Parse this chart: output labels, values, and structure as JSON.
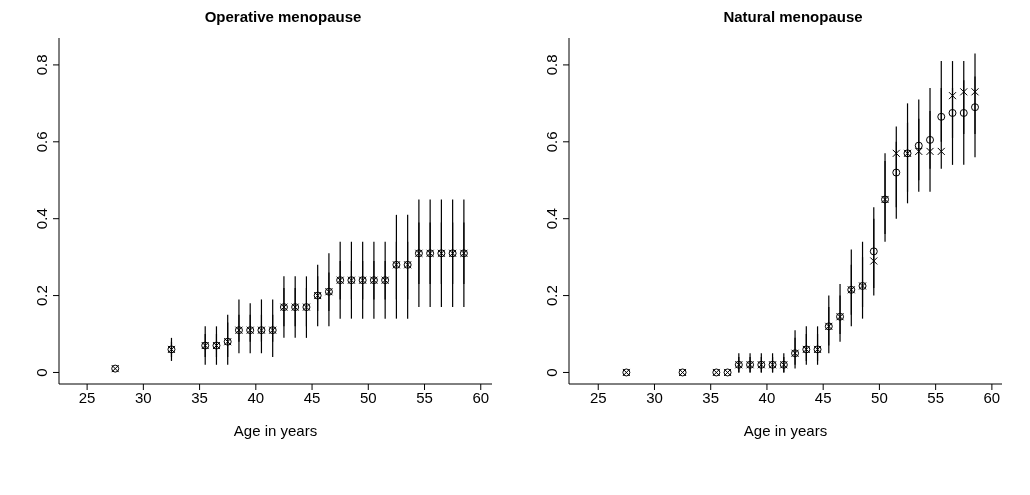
{
  "chart_data": [
    {
      "type": "scatter",
      "title": "Operative menopause",
      "xlabel": "Age in years",
      "xlim": [
        22.5,
        61
      ],
      "ylim": [
        -0.03,
        0.87
      ],
      "xticks": [
        25,
        30,
        35,
        40,
        45,
        50,
        55,
        60
      ],
      "yticks": [
        0,
        0.2,
        0.4,
        0.6,
        0.8
      ],
      "x": [
        27.5,
        32.5,
        35.5,
        36.5,
        37.5,
        38.5,
        39.5,
        40.5,
        41.5,
        42.5,
        43.5,
        44.5,
        45.5,
        46.5,
        47.5,
        48.5,
        49.5,
        50.5,
        51.5,
        52.5,
        53.5,
        54.5,
        55.5,
        56.5,
        57.5,
        58.5
      ],
      "series": [
        {
          "color": "#000000",
          "marker": "circle",
          "values": [
            0.01,
            0.06,
            0.07,
            0.07,
            0.08,
            0.11,
            0.11,
            0.11,
            0.11,
            0.17,
            0.17,
            0.17,
            0.2,
            0.21,
            0.24,
            0.24,
            0.24,
            0.24,
            0.24,
            0.28,
            0.28,
            0.31,
            0.31,
            0.31,
            0.31,
            0.31
          ],
          "errors": [
            null,
            [
              0.03,
              0.09
            ],
            [
              0.02,
              0.12
            ],
            [
              0.02,
              0.12
            ],
            [
              0.02,
              0.15
            ],
            [
              0.05,
              0.19
            ],
            [
              0.05,
              0.18
            ],
            [
              0.05,
              0.19
            ],
            [
              0.04,
              0.19
            ],
            [
              0.09,
              0.25
            ],
            [
              0.09,
              0.25
            ],
            [
              0.09,
              0.25
            ],
            [
              0.12,
              0.28
            ],
            [
              0.12,
              0.31
            ],
            [
              0.14,
              0.34
            ],
            [
              0.14,
              0.34
            ],
            [
              0.14,
              0.34
            ],
            [
              0.14,
              0.34
            ],
            [
              0.14,
              0.34
            ],
            [
              0.14,
              0.41
            ],
            [
              0.14,
              0.41
            ],
            [
              0.17,
              0.45
            ],
            [
              0.17,
              0.45
            ],
            [
              0.17,
              0.45
            ],
            [
              0.17,
              0.45
            ],
            [
              0.17,
              0.45
            ]
          ]
        },
        {
          "color": "#000000",
          "marker": "cross",
          "values": [
            0.01,
            0.06,
            0.07,
            0.07,
            0.08,
            0.11,
            0.11,
            0.11,
            0.11,
            0.17,
            0.17,
            0.17,
            0.2,
            0.21,
            0.24,
            0.24,
            0.24,
            0.24,
            0.24,
            0.28,
            0.28,
            0.31,
            0.31,
            0.31,
            0.31,
            0.31
          ],
          "errors": [
            null,
            [
              0.04,
              0.08
            ],
            [
              0.04,
              0.1
            ],
            [
              0.04,
              0.1
            ],
            [
              0.04,
              0.13
            ],
            [
              0.08,
              0.15
            ],
            [
              0.08,
              0.15
            ],
            [
              0.08,
              0.15
            ],
            [
              0.08,
              0.15
            ],
            [
              0.12,
              0.22
            ],
            [
              0.12,
              0.22
            ],
            [
              0.12,
              0.22
            ],
            [
              0.16,
              0.25
            ],
            [
              0.16,
              0.26
            ],
            [
              0.19,
              0.29
            ],
            [
              0.19,
              0.29
            ],
            [
              0.19,
              0.29
            ],
            [
              0.19,
              0.29
            ],
            [
              0.19,
              0.29
            ],
            [
              0.19,
              0.34
            ],
            [
              0.19,
              0.34
            ],
            [
              0.23,
              0.39
            ],
            [
              0.23,
              0.39
            ],
            [
              0.23,
              0.39
            ],
            [
              0.23,
              0.39
            ],
            [
              0.23,
              0.39
            ]
          ]
        }
      ]
    },
    {
      "type": "scatter",
      "title": "Natural menopause",
      "xlabel": "Age in years",
      "xlim": [
        22.4,
        60.9
      ],
      "ylim": [
        -0.03,
        0.87
      ],
      "xticks": [
        25,
        30,
        35,
        40,
        45,
        50,
        55,
        60
      ],
      "yticks": [
        0,
        0.2,
        0.4,
        0.6,
        0.8
      ],
      "x": [
        27.5,
        32.5,
        35.5,
        36.5,
        37.5,
        38.5,
        39.5,
        40.5,
        41.5,
        42.5,
        43.5,
        44.5,
        45.5,
        46.5,
        47.5,
        48.5,
        49.5,
        50.5,
        51.5,
        52.5,
        53.5,
        54.5,
        55.5,
        56.5,
        57.5,
        58.5
      ],
      "series": [
        {
          "color": "#000000",
          "marker": "circle",
          "values": [
            0,
            0,
            0,
            0,
            0.02,
            0.02,
            0.02,
            0.02,
            0.02,
            0.05,
            0.06,
            0.06,
            0.12,
            0.145,
            0.215,
            0.225,
            0.315,
            0.45,
            0.52,
            0.57,
            0.59,
            0.605,
            0.665,
            0.675,
            0.675,
            0.69
          ],
          "errors": [
            null,
            null,
            null,
            null,
            [
              0,
              0.05
            ],
            [
              0,
              0.05
            ],
            [
              0,
              0.05
            ],
            [
              0,
              0.05
            ],
            [
              0,
              0.05
            ],
            [
              0.01,
              0.11
            ],
            [
              0.02,
              0.12
            ],
            [
              0.02,
              0.12
            ],
            [
              0.05,
              0.2
            ],
            [
              0.08,
              0.23
            ],
            [
              0.12,
              0.32
            ],
            [
              0.14,
              0.34
            ],
            [
              0.2,
              0.43
            ],
            [
              0.34,
              0.57
            ],
            [
              0.4,
              0.64
            ],
            [
              0.44,
              0.7
            ],
            [
              0.47,
              0.71
            ],
            [
              0.47,
              0.74
            ],
            [
              0.53,
              0.81
            ],
            [
              0.54,
              0.81
            ],
            [
              0.54,
              0.81
            ],
            [
              0.56,
              0.83
            ]
          ]
        },
        {
          "color": "#000000",
          "marker": "cross",
          "values": [
            0,
            0,
            0,
            0,
            0.02,
            0.02,
            0.02,
            0.02,
            0.02,
            0.05,
            0.06,
            0.06,
            0.12,
            0.145,
            0.215,
            0.225,
            0.29,
            0.45,
            0.57,
            0.57,
            0.575,
            0.575,
            0.575,
            0.72,
            0.73,
            0.73
          ],
          "errors": [
            null,
            null,
            null,
            null,
            [
              0,
              0.04
            ],
            [
              0,
              0.04
            ],
            [
              0,
              0.04
            ],
            [
              0,
              0.04
            ],
            [
              0,
              0.04
            ],
            [
              0.02,
              0.09
            ],
            [
              0.03,
              0.1
            ],
            [
              0.03,
              0.1
            ],
            [
              0.07,
              0.17
            ],
            [
              0.1,
              0.2
            ],
            [
              0.15,
              0.28
            ],
            [
              0.17,
              0.3
            ],
            [
              0.22,
              0.4
            ],
            [
              0.36,
              0.55
            ],
            [
              0.43,
              0.6
            ],
            [
              0.47,
              0.65
            ],
            [
              0.5,
              0.66
            ],
            [
              0.53,
              0.68
            ],
            [
              0.6,
              0.74
            ],
            [
              0.61,
              0.74
            ],
            [
              0.62,
              0.76
            ],
            [
              0.62,
              0.77
            ]
          ]
        }
      ]
    }
  ]
}
